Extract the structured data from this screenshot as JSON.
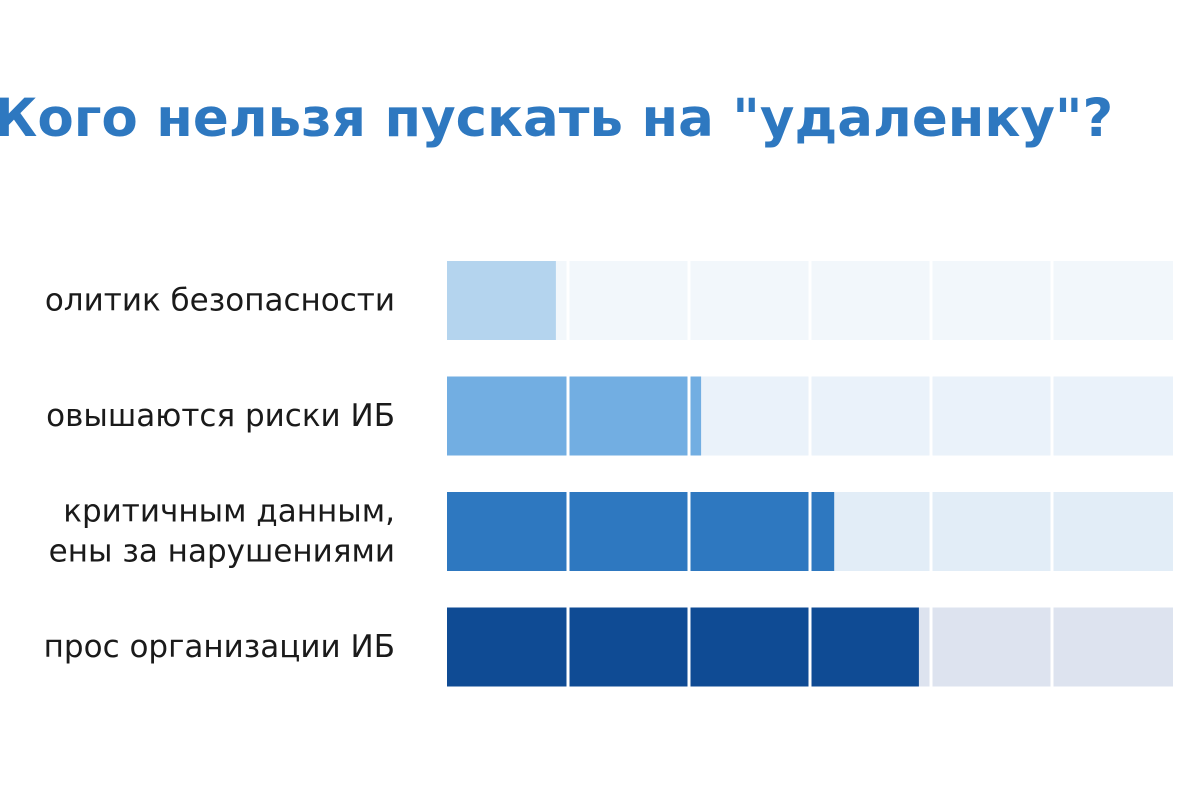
{
  "chart_data": {
    "type": "bar",
    "orientation": "horizontal",
    "title": "Кого нельзя пускать на \"удаленку\"?",
    "categories": [
      [
        "олитик безопасности"
      ],
      [
        "овышаются риски ИБ"
      ],
      [
        "критичным данным,",
        "ены за нарушениями"
      ],
      [
        "прос организации ИБ"
      ]
    ],
    "values": [
      0.9,
      2.1,
      3.2,
      3.9
    ],
    "xlim": [
      0,
      6
    ],
    "grid": true,
    "legend": "none",
    "bar_colors": [
      "#b4d4ee",
      "#72aee2",
      "#2e78c0",
      "#0f4b94"
    ],
    "track_colors": [
      "#f2f7fb",
      "#eaf2fa",
      "#e2edf7",
      "#dde3ef"
    ]
  }
}
